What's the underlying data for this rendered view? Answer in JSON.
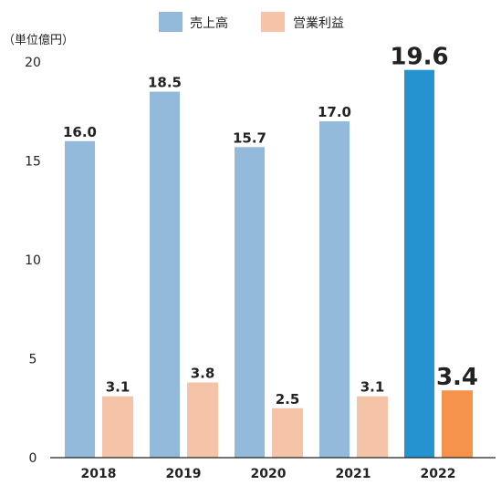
{
  "chart_data": {
    "type": "bar",
    "unit": "（単位億円）",
    "categories": [
      "2018",
      "2019",
      "2020",
      "2021",
      "2022"
    ],
    "series": [
      {
        "name": "売上高",
        "values": [
          16.0,
          18.5,
          15.7,
          17.0,
          19.6
        ],
        "value_labels": [
          "16.0",
          "18.5",
          "15.7",
          "17.0",
          "19.6"
        ],
        "color": "#93B9DB",
        "highlight_color": "#2593CF"
      },
      {
        "name": "営業利益",
        "values": [
          3.1,
          3.8,
          2.5,
          3.1,
          3.4
        ],
        "value_labels": [
          "3.1",
          "3.8",
          "2.5",
          "3.1",
          "3.4"
        ],
        "color": "#F4C3A8",
        "highlight_color": "#F5934A"
      }
    ],
    "highlight_category": "2022",
    "yticks": [
      "0",
      "5",
      "10",
      "15",
      "20"
    ],
    "ylim": [
      0,
      20
    ],
    "legend_position": "top-center",
    "grid": false
  }
}
